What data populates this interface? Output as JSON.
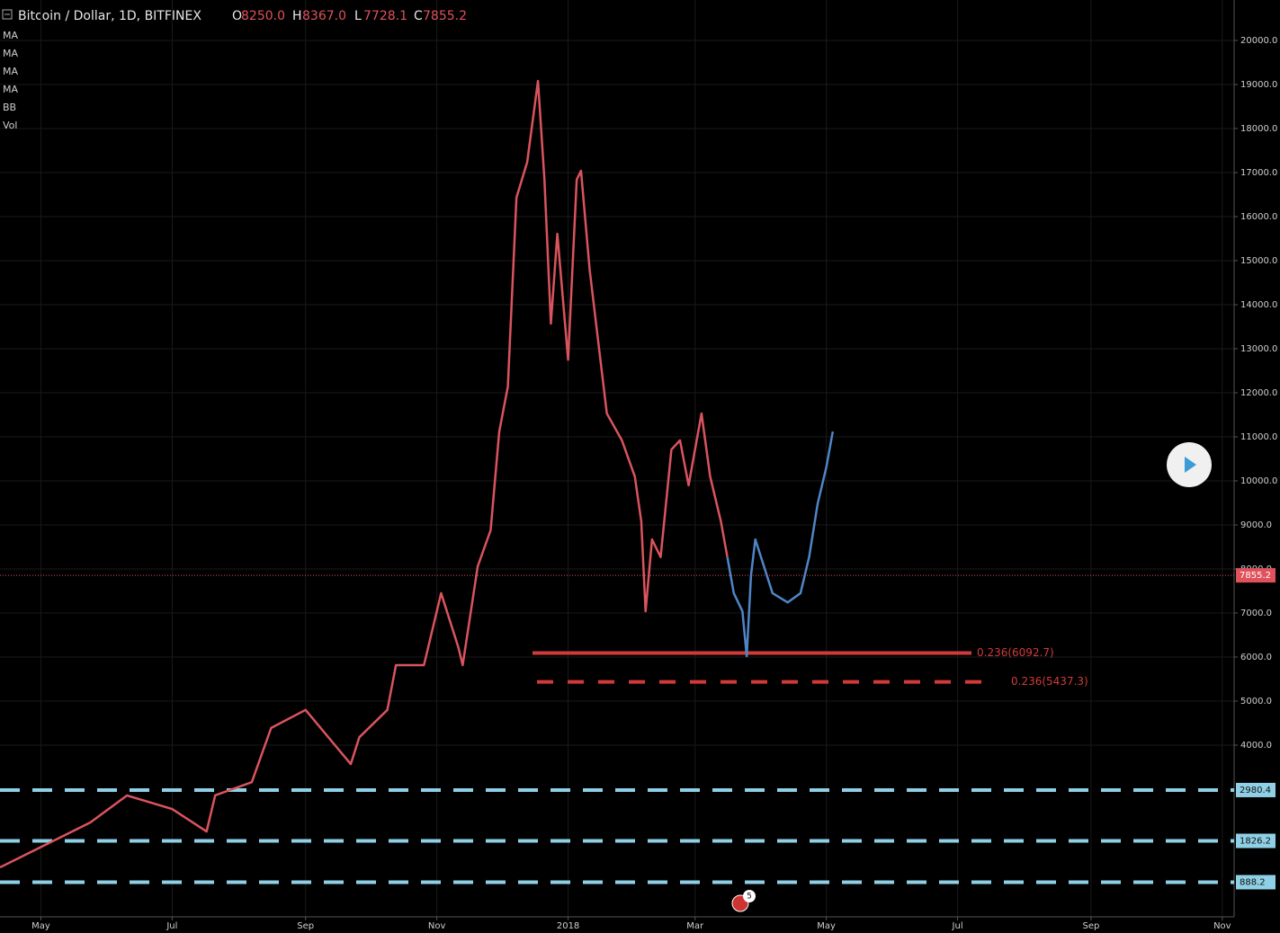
{
  "chart_data": {
    "type": "line",
    "title": "Bitcoin / Dollar, 1D, BITFINEX",
    "ohlc": {
      "labels": [
        "O",
        "H",
        "L",
        "C"
      ],
      "values": [
        8250.0,
        8367.0,
        7728.1,
        7855.2
      ],
      "value_labels": [
        "8250.0",
        "8367.0",
        "7728.1",
        "7855.2"
      ]
    },
    "indicators": [
      "MA",
      "MA",
      "MA",
      "MA",
      "BB",
      "Vol"
    ],
    "xlim": [
      -19,
      554.5
    ],
    "xticks": [
      {
        "value": 0,
        "label": "May"
      },
      {
        "value": 61,
        "label": "Jul"
      },
      {
        "value": 123,
        "label": "Sep"
      },
      {
        "value": 184,
        "label": "Nov"
      },
      {
        "value": 245,
        "label": "2018"
      },
      {
        "value": 304,
        "label": "Mar"
      },
      {
        "value": 365,
        "label": "May"
      },
      {
        "value": 426,
        "label": "Jul"
      },
      {
        "value": 488,
        "label": "Sep"
      },
      {
        "value": 549,
        "label": "Nov"
      }
    ],
    "ylim": [
      102,
      20918
    ],
    "yticks": [
      {
        "value": 4000,
        "label": "4000.0"
      },
      {
        "value": 5000,
        "label": "5000.0"
      },
      {
        "value": 6000,
        "label": "6000.0"
      },
      {
        "value": 7000,
        "label": "7000.0"
      },
      {
        "value": 8000,
        "label": "8000.0"
      },
      {
        "value": 9000,
        "label": "9000.0"
      },
      {
        "value": 10000,
        "label": "10000.0"
      },
      {
        "value": 11000,
        "label": "11000.0"
      },
      {
        "value": 12000,
        "label": "12000.0"
      },
      {
        "value": 13000,
        "label": "13000.0"
      },
      {
        "value": 14000,
        "label": "14000.0"
      },
      {
        "value": 15000,
        "label": "15000.0"
      },
      {
        "value": 16000,
        "label": "16000.0"
      },
      {
        "value": 17000,
        "label": "17000.0"
      },
      {
        "value": 18000,
        "label": "18000.0"
      },
      {
        "value": 19000,
        "label": "19000.0"
      },
      {
        "value": 20000,
        "label": "20000.0"
      }
    ],
    "grid": true,
    "series": [
      {
        "color": "#d9545e",
        "x": [
          -19,
          23,
          40,
          61,
          77,
          81,
          98,
          107,
          123,
          144,
          148,
          161,
          165,
          178,
          186,
          194,
          196,
          203,
          209,
          213,
          217,
          221,
          226,
          231,
          234,
          237,
          240,
          245,
          249,
          251,
          255,
          259,
          263,
          270,
          276,
          279,
          281,
          284,
          288,
          293,
          297,
          301,
          307,
          311,
          316,
          319
        ],
        "values": [
          1224,
          2245,
          2857,
          2550,
          2040,
          2860,
          3160,
          4390,
          4800,
          3570,
          4180,
          4800,
          5816,
          5816,
          7450,
          6220,
          5816,
          8060,
          8880,
          11120,
          12140,
          16430,
          17240,
          19080,
          16840,
          13570,
          15610,
          12750,
          16840,
          17040,
          14800,
          13160,
          11530,
          10920,
          10100,
          9080,
          7040,
          8670,
          8270,
          10710,
          10920,
          9900,
          11530,
          10100,
          9080,
          8270
        ]
      },
      {
        "color": "#4f86c6",
        "x": [
          319,
          322,
          326,
          328,
          330,
          332,
          336,
          340,
          347,
          353,
          357,
          361,
          365,
          368
        ],
        "values": [
          8270,
          7450,
          7040,
          6020,
          7860,
          8670,
          8060,
          7450,
          7240,
          7450,
          8270,
          9490,
          10310,
          11120
        ]
      }
    ],
    "last_price": {
      "value": 7855.2,
      "color": "#e0525b"
    },
    "fib_levels": [
      {
        "value": 6092.7,
        "label": "0.236(6092.7)",
        "color": "#d23a3a",
        "style": "solid"
      },
      {
        "value": 5437.3,
        "label": "0.236(5437.3)",
        "color": "#d23a3a",
        "style": "dashed"
      }
    ],
    "levels": [
      {
        "value": 2980.4,
        "color": "#8fd0e6"
      },
      {
        "value": 1826.2,
        "color": "#8fd0e6"
      },
      {
        "value": 888.2,
        "color": "#8fd0e6"
      }
    ],
    "event_badge": "5"
  }
}
